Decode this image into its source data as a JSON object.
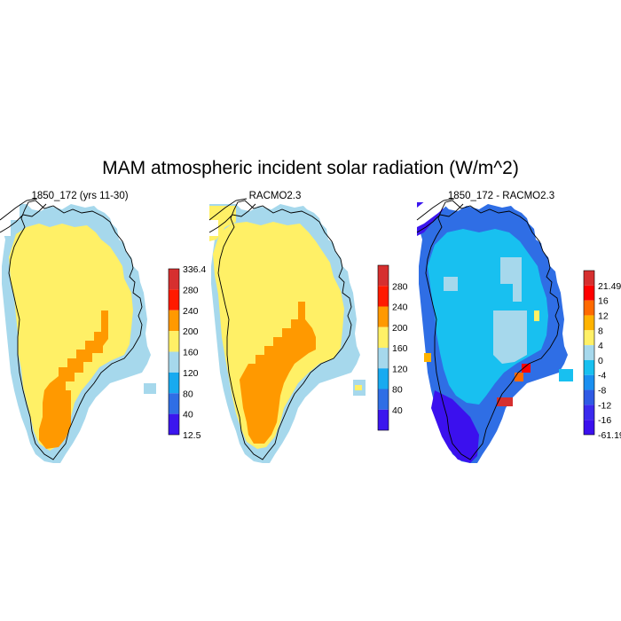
{
  "title": "MAM atmospheric incident solar radiation (W/m^2)",
  "panels": [
    {
      "title": "1850_172 (yrs 11-30)",
      "colorbar": {
        "labels": [
          "336.4",
          "280",
          "240",
          "200",
          "160",
          "120",
          "80",
          "40",
          "12.5"
        ],
        "colors": [
          "#d62f2f",
          "#ff1a00",
          "#ff9900",
          "#fff066",
          "#a6d8ec",
          "#18aaf0",
          "#2f6ee5",
          "#3b16ee"
        ]
      }
    },
    {
      "title": "RACMO2.3",
      "colorbar": {
        "labels": [
          "280",
          "240",
          "200",
          "160",
          "120",
          "80",
          "40"
        ],
        "colors": [
          "#d62f2f",
          "#ff1a00",
          "#ff9900",
          "#fff066",
          "#a6d8ec",
          "#18aaf0",
          "#2f6ee5",
          "#3b16ee"
        ]
      }
    },
    {
      "title": "1850_172 - RACMO2.3",
      "colorbar": {
        "labels": [
          "21.49",
          "16",
          "12",
          "8",
          "4",
          "0",
          "-4",
          "-8",
          "-12",
          "-16",
          "-61.19"
        ],
        "colors": [
          "#d62f2f",
          "#ff0000",
          "#ff6a00",
          "#ffb300",
          "#fff066",
          "#a6d8ec",
          "#18c0f0",
          "#1a8ff0",
          "#2f5ae5",
          "#3b2aee",
          "#3b10ee"
        ]
      }
    }
  ]
}
